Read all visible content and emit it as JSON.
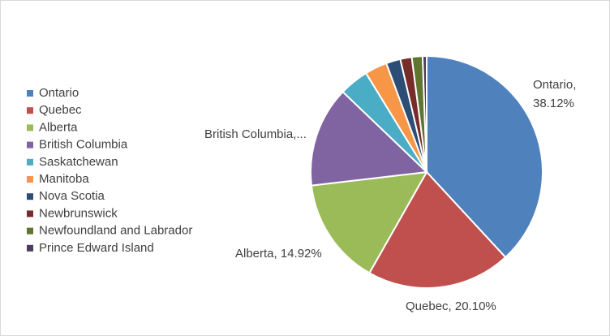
{
  "chart_data": {
    "type": "pie",
    "categories": [
      "Ontario",
      "Quebec",
      "Alberta",
      "British Columbia",
      "Saskatchewan",
      "Manitoba",
      "Nova Scotia",
      "Newbrunswick",
      "Newfoundland and Labrador",
      "Prince Edward Island"
    ],
    "values": [
      38.12,
      20.1,
      14.92,
      14.0,
      4.1,
      3.1,
      2.0,
      1.6,
      1.5,
      0.56
    ],
    "value_labels": [
      "Ontario, 38.12%",
      "Quebec, 20.10%",
      "Alberta, 14.92%",
      "British Columbia,...",
      null,
      null,
      null,
      null,
      null,
      null
    ],
    "colors": [
      "#4f81bd",
      "#c0504d",
      "#9bbb59",
      "#8064a2",
      "#4bacc6",
      "#f79646",
      "#2c4d75",
      "#772c2a",
      "#5f7530",
      "#4d3b62"
    ],
    "legend": "left"
  }
}
